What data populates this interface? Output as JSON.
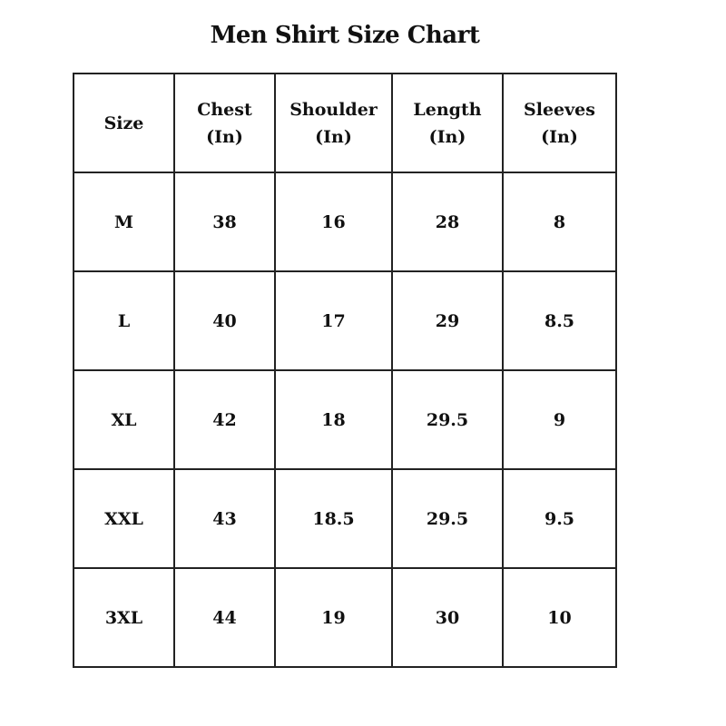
{
  "title": "Men Shirt Size Chart",
  "headers": [
    {
      "line1": "Size",
      "line2": ""
    },
    {
      "line1": "Chest",
      "line2": "(In)"
    },
    {
      "line1": "Shoulder",
      "line2": "(In)"
    },
    {
      "line1": "Length",
      "line2": "(In)"
    },
    {
      "line1": "Sleeves",
      "line2": "(In)"
    }
  ],
  "rows": [
    [
      "M",
      "38",
      "16",
      "28",
      "8"
    ],
    [
      "L",
      "40",
      "17",
      "29",
      "8.5"
    ],
    [
      "XL",
      "42",
      "18",
      "29.5",
      "9"
    ],
    [
      "XXL",
      "43",
      "18.5",
      "29.5",
      "9.5"
    ],
    [
      "3XL",
      "44",
      "19",
      "30",
      "10"
    ]
  ]
}
